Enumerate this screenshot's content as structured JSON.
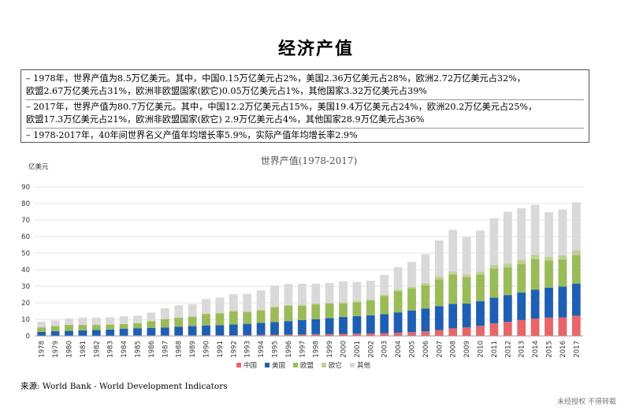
{
  "page": {
    "title": "经济产值",
    "notes": [
      "– 1978年，世界产值为8.5万亿美元。其中，中国0.15万亿美元占2%，美国2.36万亿美元占28%，欧洲2.72万亿美元占32%，\n  欧盟2.67万亿美元占31%，欧洲非欧盟国家(欧它)0.05万亿美元占1%，其他国家3.32万亿美元占39%",
      "– 2017年，世界产值为80.7万亿美元。其中，中国12.2万亿美元占15%，美国19.4万亿美元占24%，欧洲20.2万亿美元占25%，\n  欧盟17.3万亿美元占21%，欧洲非欧盟国家(欧它) 2.9万亿美元占4%，其他国家28.9万亿美元占36%",
      "– 1978-2017年，40年间世界名义产值年均增长率5.9%，实际产值年均增长率2.9%"
    ],
    "source": "来源:    World Bank -  World Development Indicators",
    "watermark": "未经授权 不得转载"
  },
  "chart_data": {
    "type": "bar",
    "stacked": true,
    "title": "世界产值(1978-2017)",
    "ylabel": "亿美元",
    "xlabel": "",
    "ylim": [
      0,
      90
    ],
    "yticks": [
      0,
      10,
      20,
      30,
      40,
      50,
      60,
      70,
      80,
      90
    ],
    "legend_position": "bottom",
    "categories": [
      "1978",
      "1979",
      "1980",
      "1981",
      "1982",
      "1983",
      "1984",
      "1985",
      "1986",
      "1987",
      "1988",
      "1989",
      "1990",
      "1991",
      "1992",
      "1993",
      "1994",
      "1995",
      "1996",
      "1997",
      "1998",
      "1999",
      "2000",
      "2001",
      "2002",
      "2003",
      "2004",
      "2005",
      "2006",
      "2007",
      "2008",
      "2009",
      "2010",
      "2011",
      "2012",
      "2013",
      "2014",
      "2015",
      "2016",
      "2017"
    ],
    "series": [
      {
        "name": "中国",
        "color": "#e8666a",
        "values": [
          0.15,
          0.18,
          0.19,
          0.2,
          0.2,
          0.23,
          0.26,
          0.31,
          0.3,
          0.27,
          0.31,
          0.35,
          0.36,
          0.38,
          0.43,
          0.44,
          0.56,
          0.73,
          0.86,
          0.96,
          1.03,
          1.09,
          1.21,
          1.34,
          1.47,
          1.66,
          1.96,
          2.29,
          2.75,
          3.55,
          4.59,
          5.1,
          6.09,
          7.55,
          8.53,
          9.57,
          10.44,
          11.06,
          11.19,
          12.2
        ]
      },
      {
        "name": "美国",
        "color": "#1f5fb3",
        "values": [
          2.36,
          2.63,
          2.86,
          3.21,
          3.34,
          3.64,
          4.04,
          4.35,
          4.59,
          4.87,
          5.25,
          5.66,
          5.98,
          6.17,
          6.54,
          6.88,
          7.31,
          7.66,
          8.1,
          8.61,
          9.09,
          9.66,
          10.28,
          10.62,
          10.98,
          11.51,
          12.27,
          13.09,
          13.86,
          14.48,
          14.72,
          14.42,
          14.96,
          15.52,
          16.16,
          16.69,
          17.43,
          18.12,
          18.62,
          19.4
        ]
      },
      {
        "name": "欧盟",
        "color": "#9bbb59",
        "values": [
          2.67,
          3.19,
          3.6,
          3.2,
          3.05,
          2.97,
          2.87,
          2.97,
          4.04,
          4.99,
          5.46,
          5.55,
          6.94,
          7.17,
          7.9,
          7.13,
          7.53,
          8.9,
          9.18,
          8.66,
          8.89,
          8.74,
          8.22,
          8.35,
          9.06,
          11.02,
          12.7,
          13.16,
          14.03,
          16.16,
          17.8,
          15.98,
          16.02,
          17.72,
          16.7,
          17.35,
          18.63,
          16.4,
          16.5,
          17.3
        ]
      },
      {
        "name": "欧它",
        "color": "#bfd09c",
        "values": [
          0.05,
          0.06,
          0.06,
          0.07,
          0.07,
          0.07,
          0.07,
          0.07,
          0.09,
          0.1,
          0.11,
          0.12,
          0.13,
          0.2,
          0.3,
          0.35,
          0.4,
          0.5,
          0.55,
          0.6,
          0.6,
          0.55,
          0.6,
          0.6,
          0.7,
          0.85,
          1.0,
          1.15,
          1.35,
          1.6,
          1.85,
          1.6,
          1.8,
          2.1,
          2.2,
          2.35,
          2.5,
          2.2,
          2.3,
          2.9
        ]
      },
      {
        "name": "其他",
        "color": "#d9d9d9",
        "values": [
          3.32,
          3.35,
          3.83,
          4.39,
          4.3,
          4.46,
          4.71,
          4.52,
          5.07,
          6.46,
          7.36,
          7.61,
          8.89,
          9.25,
          10.02,
          10.64,
          11.7,
          12.66,
          12.71,
          12.7,
          11.86,
          11.87,
          12.66,
          11.71,
          11.15,
          11.84,
          13.6,
          15.07,
          17.38,
          21.91,
          25.08,
          22.66,
          24.8,
          28.25,
          31.37,
          31.12,
          30.21,
          26.98,
          27.78,
          28.9
        ]
      }
    ]
  }
}
